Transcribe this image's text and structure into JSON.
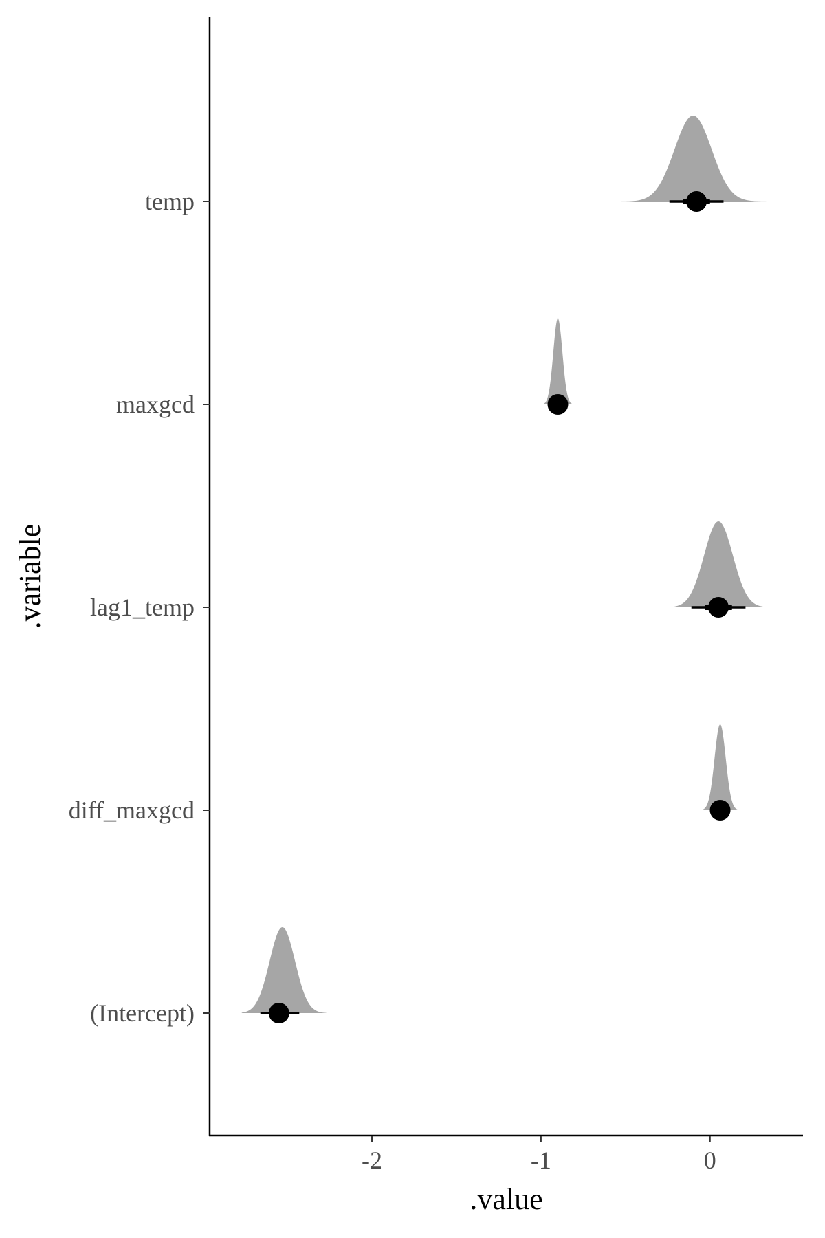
{
  "colors": {
    "density": "#a6a6a6",
    "point": "#000000",
    "axis": "#000000",
    "tick_text": "#4d4d4d"
  },
  "chart_data": {
    "type": "halfeye",
    "xlabel": ".value",
    "ylabel": ".variable",
    "xlim": [
      -2.96,
      0.55
    ],
    "xticks": [
      -2,
      -1,
      0
    ],
    "xtick_labels": [
      "-2",
      "-1",
      "0"
    ],
    "grid": false,
    "legend": "none",
    "series": [
      {
        "name": "(Intercept)",
        "median": -2.55,
        "mode": -2.53,
        "sd": 0.075,
        "range": [
          -2.77,
          -2.27
        ],
        "interval_66": [
          -2.6,
          -2.49
        ],
        "interval_95": [
          -2.66,
          -2.43
        ]
      },
      {
        "name": "diff_maxgcd",
        "median": 0.06,
        "mode": 0.06,
        "sd": 0.033,
        "range": [
          -0.09,
          0.28
        ],
        "interval_66": [
          0.03,
          0.09
        ],
        "interval_95": [
          0.0,
          0.12
        ]
      },
      {
        "name": "lag1_temp",
        "median": 0.05,
        "mode": 0.05,
        "sd": 0.085,
        "range": [
          -0.24,
          0.37
        ],
        "interval_66": [
          -0.03,
          0.13
        ],
        "interval_95": [
          -0.11,
          0.21
        ]
      },
      {
        "name": "maxgcd",
        "median": -0.9,
        "mode": -0.9,
        "sd": 0.027,
        "range": [
          -1.06,
          -0.79
        ],
        "interval_66": [
          -0.93,
          -0.87
        ],
        "interval_95": [
          -0.95,
          -0.85
        ]
      },
      {
        "name": "temp",
        "median": -0.08,
        "mode": -0.1,
        "sd": 0.11,
        "range": [
          -0.57,
          0.4
        ],
        "interval_66": [
          -0.16,
          0.0
        ],
        "interval_95": [
          -0.24,
          0.08
        ]
      }
    ]
  }
}
